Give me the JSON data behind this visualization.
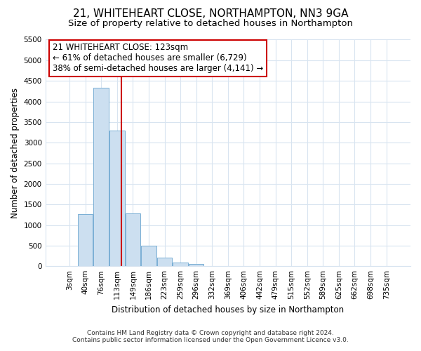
{
  "title": "21, WHITEHEART CLOSE, NORTHAMPTON, NN3 9GA",
  "subtitle": "Size of property relative to detached houses in Northampton",
  "xlabel": "Distribution of detached houses by size in Northampton",
  "ylabel": "Number of detached properties",
  "footnote1": "Contains HM Land Registry data © Crown copyright and database right 2024.",
  "footnote2": "Contains public sector information licensed under the Open Government Licence v3.0.",
  "categories": [
    "3sqm",
    "40sqm",
    "76sqm",
    "113sqm",
    "149sqm",
    "186sqm",
    "223sqm",
    "259sqm",
    "296sqm",
    "332sqm",
    "369sqm",
    "406sqm",
    "442sqm",
    "479sqm",
    "515sqm",
    "552sqm",
    "589sqm",
    "625sqm",
    "662sqm",
    "698sqm",
    "735sqm"
  ],
  "bar_values": [
    0,
    1260,
    4340,
    3300,
    1280,
    490,
    210,
    80,
    60,
    0,
    0,
    0,
    0,
    0,
    0,
    0,
    0,
    0,
    0,
    0,
    0
  ],
  "bar_color": "#ccdff0",
  "bar_edge_color": "#7aafd4",
  "ylim": [
    0,
    5500
  ],
  "yticks": [
    0,
    500,
    1000,
    1500,
    2000,
    2500,
    3000,
    3500,
    4000,
    4500,
    5000,
    5500
  ],
  "marker_label": "21 WHITEHEART CLOSE: 123sqm",
  "marker_line1": "← 61% of detached houses are smaller (6,729)",
  "marker_line2": "38% of semi-detached houses are larger (4,141) →",
  "marker_color": "#cc0000",
  "bg_color": "#ffffff",
  "plot_bg_color": "#ffffff",
  "grid_color": "#d8e4f0",
  "title_fontsize": 11,
  "subtitle_fontsize": 9.5,
  "annot_fontsize": 8.5,
  "axis_label_fontsize": 8.5,
  "tick_fontsize": 7.5,
  "footnote_fontsize": 6.5
}
